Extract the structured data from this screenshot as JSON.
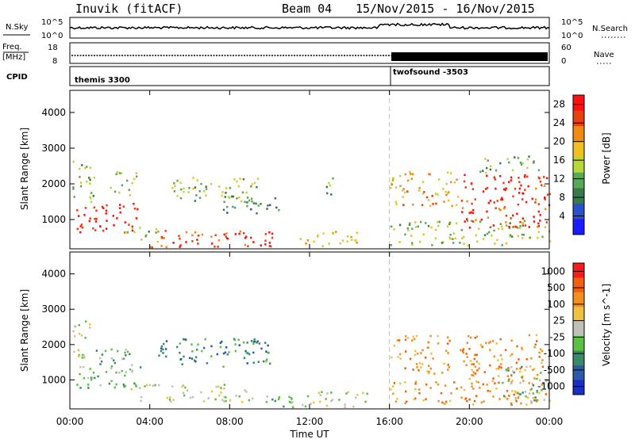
{
  "header": {
    "station": "Inuvik (fitACF)",
    "beam": "Beam 04",
    "dates": "15/Nov/2015 - 16/Nov/2015"
  },
  "panels": {
    "nsky_label": "N.Sky",
    "nsearch_label": "N.Search",
    "nsky_ticks": [
      "10^5",
      "10^0"
    ],
    "nsearch_ticks": [
      "10^5",
      "10^0"
    ],
    "freq_label_1": "Freq.",
    "freq_label_2": "[MHz]",
    "freq_ticks": [
      "18",
      "8"
    ],
    "nave_label": "Nave",
    "nave_ticks": [
      "60",
      "0"
    ],
    "cpid_label": "CPID",
    "cpid_1": "themis 3300",
    "cpid_2": "twofsound -3503"
  },
  "chart_data": [
    {
      "type": "heatmap",
      "quantity": "power",
      "ylabel": "Slant Range [km]",
      "xlabel": "Time UT",
      "x_ticks": [
        "00:00",
        "04:00",
        "08:00",
        "12:00",
        "16:00",
        "20:00",
        "00:00"
      ],
      "x_range_hours": [
        0,
        24
      ],
      "y_ticks": [
        1000,
        2000,
        3000,
        4000
      ],
      "ylim": [
        180,
        4620
      ],
      "colorbar_label": "Power [dB]",
      "colorbar_ticks": [
        "4",
        "8",
        "12",
        "16",
        "20",
        "24",
        "28"
      ],
      "colorbar_range": [
        0,
        30
      ],
      "colorbar_colors": [
        "#1a1aff",
        "#2a52c8",
        "#3a7a4a",
        "#58a858",
        "#b8d83a",
        "#f0c020",
        "#f08a10",
        "#e84010",
        "#ff1010"
      ],
      "blobs": [
        {
          "t0": 0.3,
          "t1": 3.4,
          "r0": 650,
          "r1": 1500,
          "v": 28
        },
        {
          "t0": 0.1,
          "t1": 1.2,
          "r0": 1500,
          "r1": 2700,
          "v": 14
        },
        {
          "t0": 2.0,
          "t1": 3.3,
          "r0": 1700,
          "r1": 2400,
          "v": 14
        },
        {
          "t0": 2.5,
          "t1": 4.5,
          "r0": 400,
          "r1": 800,
          "v": 12
        },
        {
          "t0": 4.0,
          "t1": 10.5,
          "r0": 250,
          "r1": 750,
          "v": 26
        },
        {
          "t0": 5.0,
          "t1": 9.5,
          "r0": 1500,
          "r1": 2200,
          "v": 14
        },
        {
          "t0": 7.5,
          "t1": 10.5,
          "r0": 1200,
          "r1": 1700,
          "v": 9
        },
        {
          "t0": 11.5,
          "t1": 14.5,
          "r0": 250,
          "r1": 700,
          "v": 18
        },
        {
          "t0": 12.8,
          "t1": 13.2,
          "r0": 1400,
          "r1": 2300,
          "v": 10
        },
        {
          "t0": 16.0,
          "t1": 19.5,
          "r0": 1400,
          "r1": 2400,
          "v": 20
        },
        {
          "t0": 16.0,
          "t1": 24.0,
          "r0": 300,
          "r1": 1000,
          "v": 14
        },
        {
          "t0": 19.5,
          "t1": 24.0,
          "r0": 800,
          "r1": 2300,
          "v": 27
        },
        {
          "t0": 20.5,
          "t1": 23.5,
          "r0": 2300,
          "r1": 2800,
          "v": 12
        }
      ]
    },
    {
      "type": "heatmap",
      "quantity": "velocity",
      "ylabel": "Slant Range [km]",
      "xlabel": "Time UT",
      "x_ticks": [
        "00:00",
        "04:00",
        "08:00",
        "12:00",
        "16:00",
        "20:00",
        "00:00"
      ],
      "x_range_hours": [
        0,
        24
      ],
      "y_ticks": [
        1000,
        2000,
        3000,
        4000
      ],
      "ylim": [
        180,
        4620
      ],
      "colorbar_label": "Velocity [m s^-1]",
      "colorbar_ticks": [
        "1000",
        "500",
        "100",
        "25",
        "-25",
        "-100",
        "-500",
        "-1000"
      ],
      "colorbar_colors": [
        "#1a30c0",
        "#2a5aa8",
        "#3a8a6a",
        "#5ac040",
        "#c0c0b8",
        "#f0c040",
        "#f09020",
        "#f06010",
        "#ff1a1a"
      ],
      "blobs": [
        {
          "t0": 0.3,
          "t1": 3.5,
          "r0": 800,
          "r1": 1900,
          "v": 3
        },
        {
          "t0": 0.1,
          "t1": 1.0,
          "r0": 1600,
          "r1": 2700,
          "v": 4
        },
        {
          "t0": 3.0,
          "t1": 9.0,
          "r0": 400,
          "r1": 900,
          "v": 4
        },
        {
          "t0": 4.0,
          "t1": 10.0,
          "r0": 1400,
          "r1": 2200,
          "v": 2
        },
        {
          "t0": 9.0,
          "t1": 12.0,
          "r0": 250,
          "r1": 600,
          "v": 3
        },
        {
          "t0": 12.0,
          "t1": 15.0,
          "r0": 250,
          "r1": 700,
          "v": 4
        },
        {
          "t0": 16.0,
          "t1": 19.0,
          "r0": 1200,
          "r1": 2300,
          "v": 6
        },
        {
          "t0": 16.0,
          "t1": 24.0,
          "r0": 300,
          "r1": 1000,
          "v": 6
        },
        {
          "t0": 19.5,
          "t1": 23.8,
          "r0": 1000,
          "r1": 2300,
          "v": 6
        },
        {
          "t0": 21.5,
          "t1": 24.0,
          "r0": 400,
          "r1": 1400,
          "v": 3
        }
      ]
    }
  ]
}
